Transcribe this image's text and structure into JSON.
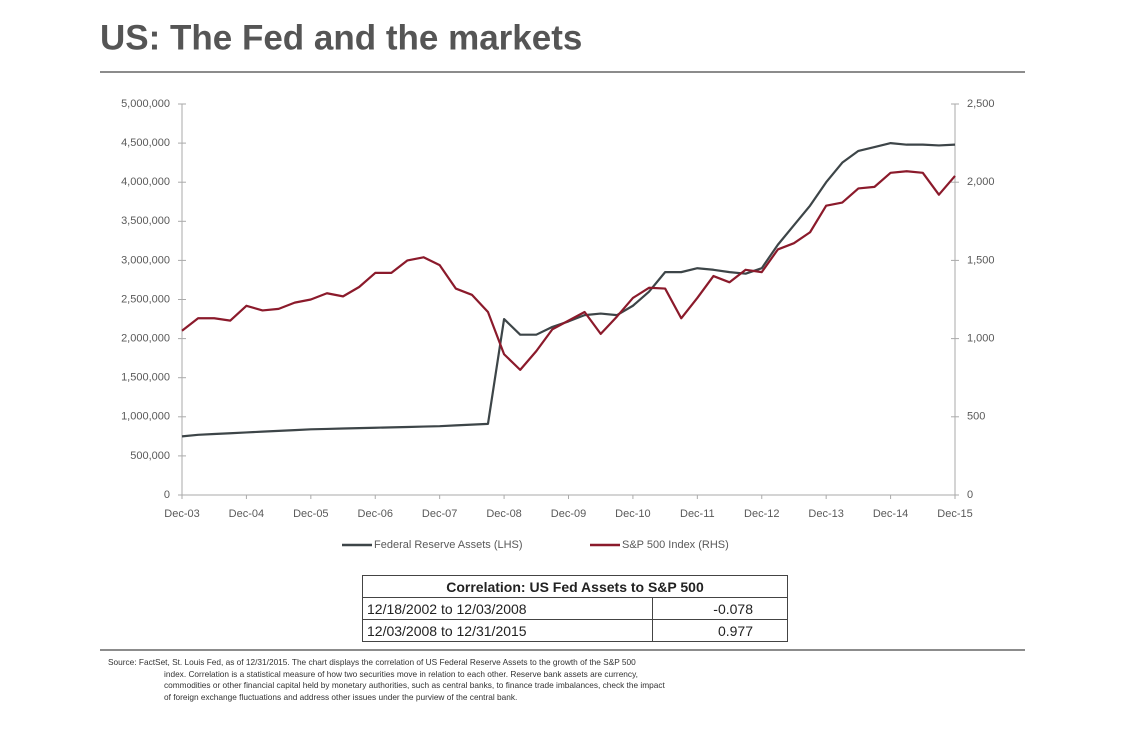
{
  "chart_data": {
    "type": "line",
    "title": "US: The Fed and the markets",
    "categories": [
      "Dec-03",
      null,
      null,
      null,
      "Dec-04",
      null,
      null,
      null,
      "Dec-05",
      null,
      null,
      null,
      "Dec-06",
      null,
      null,
      null,
      "Dec-07",
      null,
      null,
      null,
      "Dec-08",
      null,
      null,
      null,
      "Dec-09",
      null,
      null,
      null,
      "Dec-10",
      null,
      null,
      null,
      "Dec-11",
      null,
      null,
      null,
      "Dec-12",
      null,
      null,
      null,
      "Dec-13",
      null,
      null,
      null,
      "Dec-14",
      null,
      null,
      null,
      "Dec-15"
    ],
    "series": [
      {
        "name": "Federal Reserve Assets (LHS)",
        "color": "#3d4548",
        "axis": "y",
        "values": [
          750000,
          770000,
          780000,
          790000,
          800000,
          810000,
          820000,
          830000,
          840000,
          845000,
          850000,
          855000,
          860000,
          865000,
          870000,
          875000,
          880000,
          890000,
          900000,
          910000,
          2250000,
          2050000,
          2050000,
          2150000,
          2220000,
          2300000,
          2320000,
          2300000,
          2420000,
          2600000,
          2850000,
          2850000,
          2900000,
          2880000,
          2850000,
          2830000,
          2900000,
          3200000,
          3450000,
          3700000,
          4000000,
          4250000,
          4400000,
          4450000,
          4500000,
          4480000,
          4480000,
          4470000,
          4480000
        ]
      },
      {
        "name": "S&P 500 Index (RHS)",
        "color": "#8b1a2b",
        "axis": "y2",
        "values": [
          1050,
          1130,
          1130,
          1115,
          1210,
          1180,
          1190,
          1230,
          1250,
          1290,
          1270,
          1330,
          1420,
          1420,
          1500,
          1520,
          1470,
          1320,
          1280,
          1170,
          900,
          800,
          920,
          1060,
          1115,
          1170,
          1030,
          1140,
          1260,
          1325,
          1320,
          1130,
          1260,
          1400,
          1360,
          1440,
          1425,
          1570,
          1610,
          1680,
          1850,
          1870,
          1960,
          1970,
          2060,
          2070,
          2060,
          1920,
          2040
        ]
      }
    ],
    "ylim": [
      0,
      5000000
    ],
    "yticks": [
      0,
      {
        "value": 500000,
        "label": "500,000"
      },
      {
        "value": 1000000,
        "label": "1,000,000"
      },
      {
        "value": 1500000,
        "label": "1,500,000"
      },
      {
        "value": 2000000,
        "label": "2,000,000"
      },
      {
        "value": 2500000,
        "label": "2,500,000"
      },
      {
        "value": 3000000,
        "label": "3,000,000"
      },
      {
        "value": 3500000,
        "label": "3,500,000"
      },
      {
        "value": 4000000,
        "label": "4,000,000"
      },
      {
        "value": 4500000,
        "label": "4,500,000"
      },
      {
        "value": 5000000,
        "label": "5,000,000"
      }
    ],
    "y2lim": [
      0,
      2500
    ],
    "y2ticks": [
      0,
      500,
      {
        "value": 1000,
        "label": "1,000"
      },
      {
        "value": 1500,
        "label": "1,500"
      },
      {
        "value": 2000,
        "label": "2,000"
      },
      {
        "value": 2500,
        "label": "2,500"
      }
    ],
    "legend": "bottom"
  },
  "table": {
    "title": "Correlation: US Fed Assets to S&P 500",
    "rows": [
      [
        "12/18/2002 to 12/03/2008",
        "-0.078"
      ],
      [
        "12/03/2008 to 12/31/2015",
        "0.977"
      ]
    ]
  },
  "source": {
    "lines": [
      "Source: FactSet, St. Louis Fed,  as of 12/31/2015. The chart displays the correlation of US Federal Reserve Assets to the growth of the S&P 500",
      "index. Correlation is a statistical measure of how two securities move in relation to each other.  Reserve bank assets are currency,",
      "commodities or other financial capital held by monetary authorities, such as central banks, to finance trade imbalances, check the impact",
      "of foreign exchange fluctuations and address other issues under the purview of the central bank."
    ]
  }
}
